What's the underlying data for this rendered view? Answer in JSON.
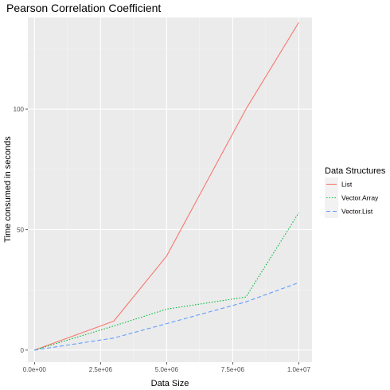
{
  "chart_data": {
    "type": "line",
    "title": "Pearson Correlation Coefficient",
    "xlabel": "Data Size",
    "ylabel": "Time consumed in seconds",
    "xlim": [
      -250000,
      10500000
    ],
    "ylim": [
      -5,
      138
    ],
    "x_ticks": [
      0,
      2500000,
      5000000,
      7500000,
      10000000
    ],
    "x_tick_labels": [
      "0.0e+00",
      "2.5e+06",
      "5.0e+06",
      "7.5e+06",
      "1.0e+07"
    ],
    "y_ticks": [
      0,
      50,
      100
    ],
    "y_tick_labels": [
      "0",
      "50",
      "100"
    ],
    "grid": true,
    "legend": {
      "title": "Data Structures",
      "position": "right"
    },
    "series": [
      {
        "name": "List",
        "color": "#F8766D",
        "dash": "solid",
        "x": [
          0,
          3000000,
          5000000,
          8000000,
          10000000
        ],
        "y": [
          0,
          12,
          39,
          100,
          136
        ]
      },
      {
        "name": "Vector.Array",
        "color": "#00BA38",
        "dash": "dotted",
        "x": [
          0,
          3000000,
          5000000,
          8000000,
          10000000
        ],
        "y": [
          0,
          10,
          17,
          22,
          57
        ]
      },
      {
        "name": "Vector.List",
        "color": "#619CFF",
        "dash": "dashed",
        "x": [
          0,
          3000000,
          5000000,
          8000000,
          10000000
        ],
        "y": [
          0,
          5,
          11,
          20,
          28
        ]
      }
    ]
  }
}
